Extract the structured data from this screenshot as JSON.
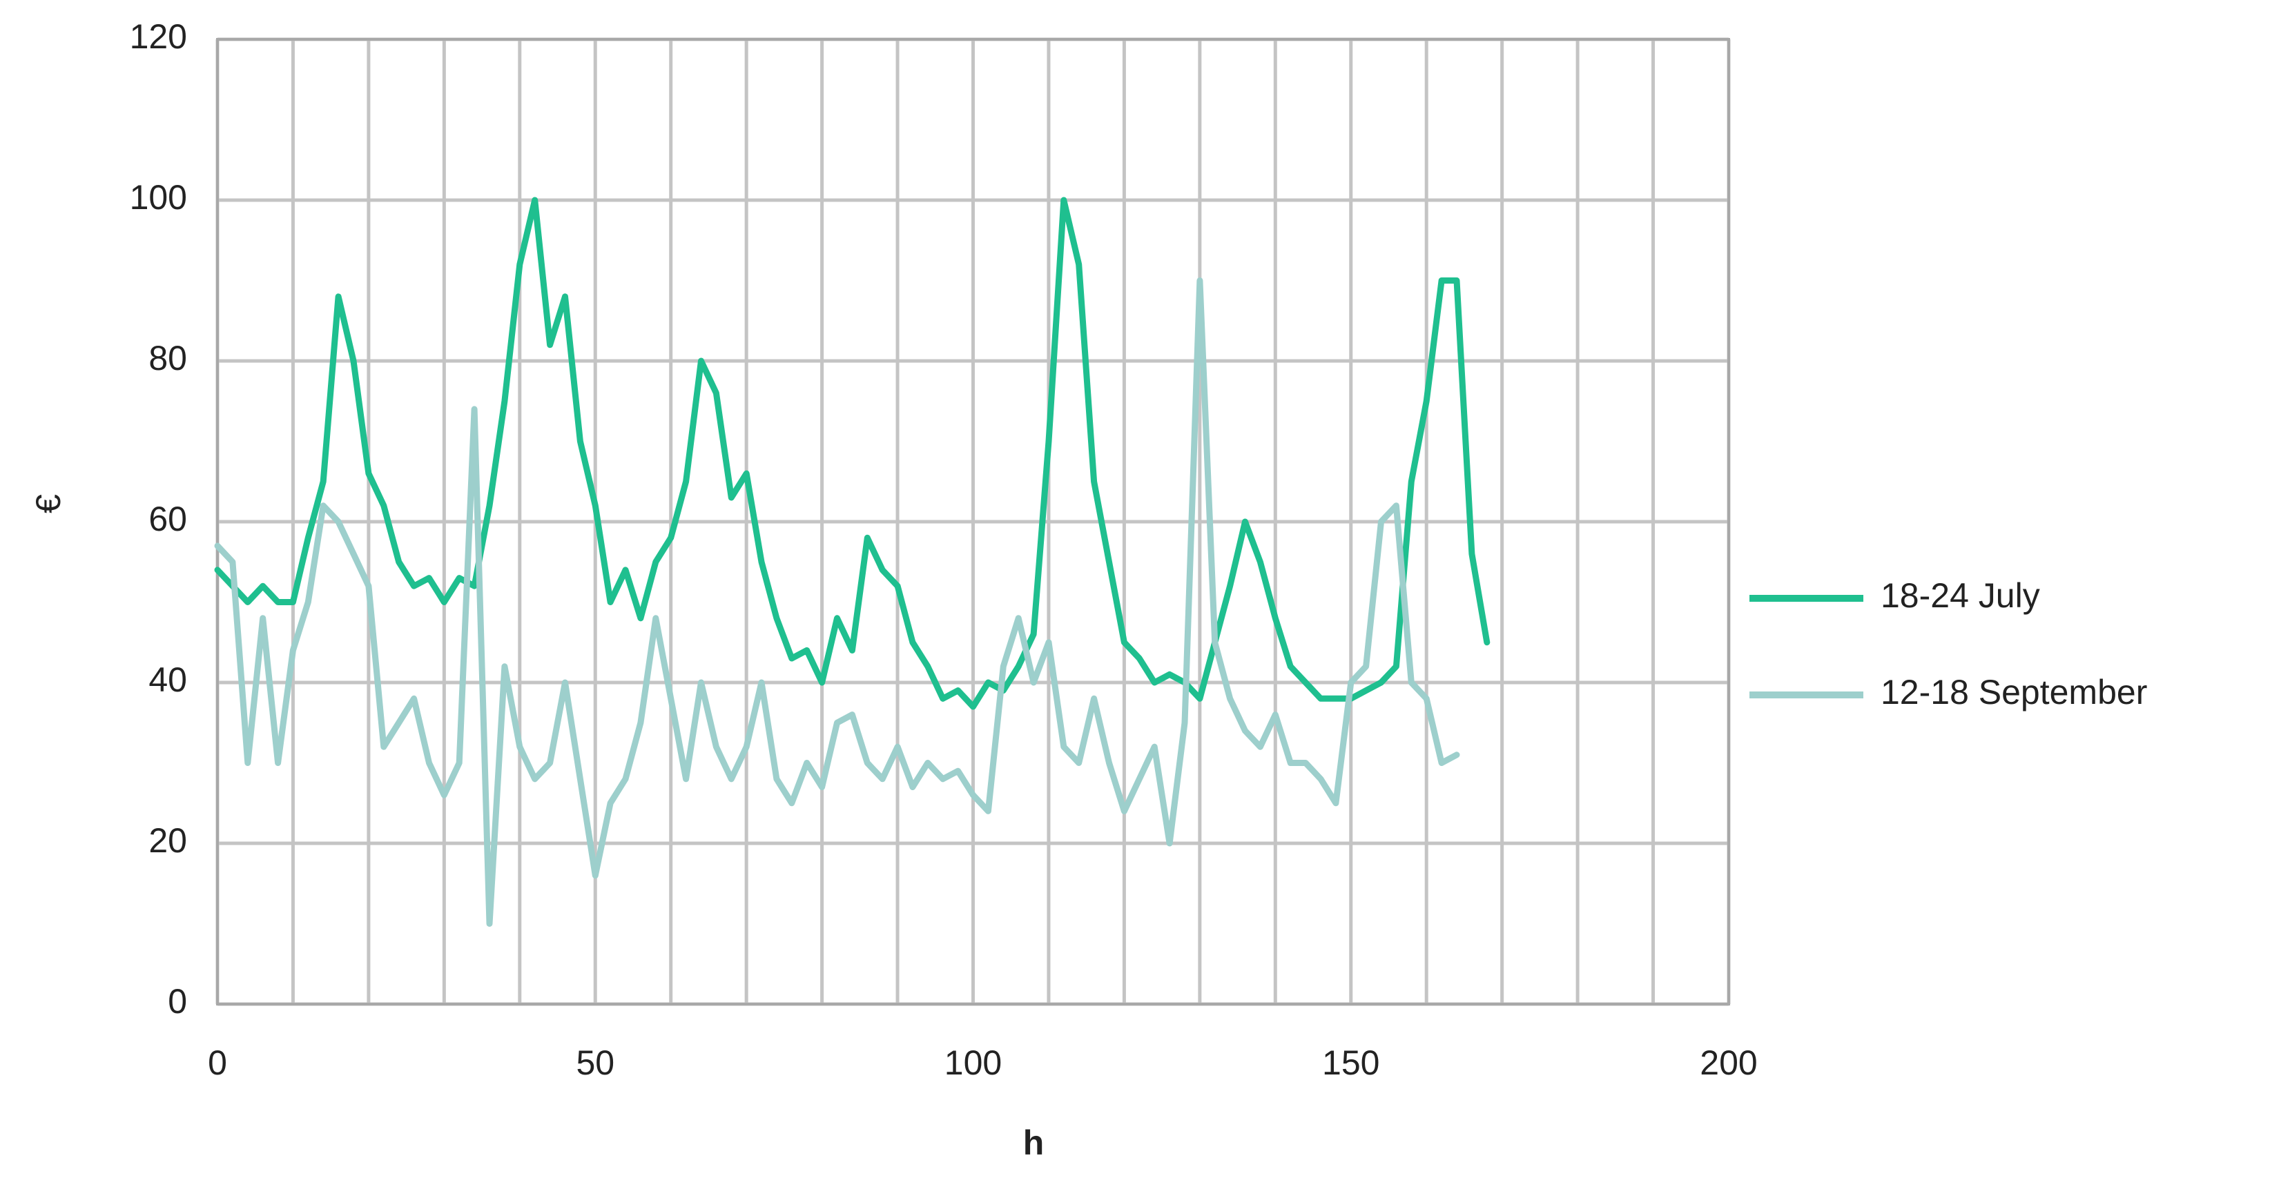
{
  "chart_data": {
    "type": "line",
    "xlabel": "h",
    "ylabel": "€",
    "x": [
      0,
      2,
      4,
      6,
      8,
      10,
      12,
      14,
      16,
      18,
      20,
      22,
      24,
      26,
      28,
      30,
      32,
      34,
      36,
      38,
      40,
      42,
      44,
      46,
      48,
      50,
      52,
      54,
      56,
      58,
      60,
      62,
      64,
      66,
      68,
      70,
      72,
      74,
      76,
      78,
      80,
      82,
      84,
      86,
      88,
      90,
      92,
      94,
      96,
      98,
      100,
      102,
      104,
      106,
      108,
      110,
      112,
      114,
      116,
      118,
      120,
      122,
      124,
      126,
      128,
      130,
      132,
      134,
      136,
      138,
      140,
      142,
      144,
      146,
      148,
      150,
      152,
      154,
      156,
      158,
      160,
      162,
      164,
      166,
      168
    ],
    "series": [
      {
        "name": "18-24 July",
        "color": "#1fbf8f",
        "values": [
          54,
          52,
          50,
          52,
          50,
          50,
          58,
          65,
          88,
          80,
          66,
          62,
          55,
          52,
          53,
          50,
          53,
          52,
          62,
          75,
          92,
          100,
          82,
          88,
          70,
          62,
          50,
          54,
          48,
          55,
          58,
          65,
          80,
          76,
          63,
          66,
          55,
          48,
          43,
          44,
          40,
          48,
          44,
          58,
          54,
          52,
          45,
          42,
          38,
          39,
          37,
          40,
          39,
          42,
          46,
          70,
          100,
          92,
          65,
          55,
          45,
          43,
          40,
          41,
          40,
          38,
          45,
          52,
          60,
          55,
          48,
          42,
          40,
          38,
          38,
          38,
          39,
          40,
          42,
          65,
          75,
          90,
          90,
          56,
          45
        ]
      },
      {
        "name": "12-18 September",
        "color": "#9dcfcc",
        "values": [
          57,
          55,
          30,
          48,
          30,
          44,
          50,
          62,
          60,
          56,
          52,
          32,
          35,
          38,
          30,
          26,
          30,
          74,
          10,
          42,
          32,
          28,
          30,
          40,
          28,
          16,
          25,
          28,
          35,
          48,
          38,
          28,
          40,
          32,
          28,
          32,
          40,
          28,
          25,
          30,
          27,
          35,
          36,
          30,
          28,
          32,
          27,
          30,
          28,
          29,
          26,
          24,
          42,
          48,
          40,
          45,
          32,
          30,
          38,
          30,
          24,
          28,
          32,
          20,
          35,
          90,
          45,
          38,
          34,
          32,
          36,
          30,
          30,
          28,
          25,
          40,
          42,
          60,
          62,
          40,
          38,
          30,
          31,
          null,
          null
        ]
      }
    ],
    "xlim": [
      0,
      200
    ],
    "xticks": [
      0,
      50,
      100,
      150,
      200
    ],
    "ylim": [
      0,
      120
    ],
    "yticks": [
      0,
      20,
      40,
      60,
      80,
      100,
      120
    ],
    "grid": true,
    "legend": "right"
  }
}
